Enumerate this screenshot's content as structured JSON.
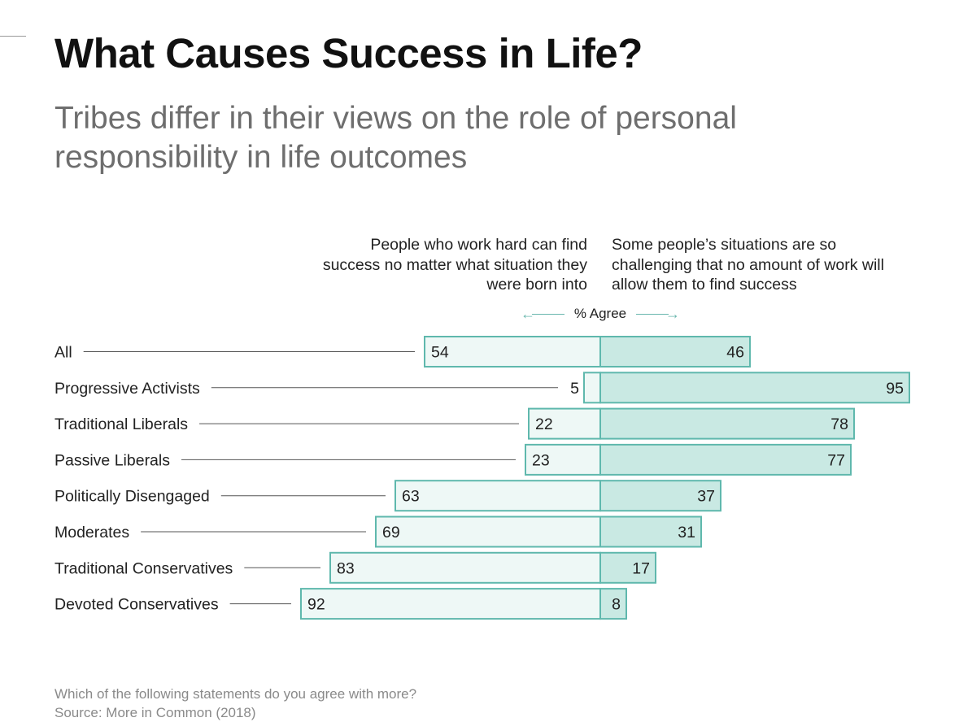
{
  "title": "What Causes Success in Life?",
  "subtitle": "Tribes differ in their views on the role of personal responsibility in life outcomes",
  "legend": {
    "left_header": "People who work hard can find success no matter what situation they were born into",
    "right_header": "Some people’s situations are so challenging that no amount of work will allow them to find success",
    "axis_label": "% Agree"
  },
  "footnote": "Which of the following statements do you agree with more?",
  "source": "Source: More in Common (2018)",
  "colors": {
    "left_fill": "#eef8f6",
    "right_fill": "#c9e9e3",
    "border": "#5fb8ad",
    "leader": "#555555"
  },
  "chart_data": {
    "type": "bar",
    "orientation": "horizontal-diverging",
    "categories": [
      "All",
      "Progressive Activists",
      "Traditional Liberals",
      "Passive Liberals",
      "Politically Disengaged",
      "Moderates",
      "Traditional Conservatives",
      "Devoted Conservatives"
    ],
    "series": [
      {
        "name": "People who work hard can find success no matter what situation they were born into",
        "values": [
          54,
          5,
          22,
          23,
          63,
          69,
          83,
          92
        ]
      },
      {
        "name": "Some people’s situations are so challenging that no amount of work will allow them to find success",
        "values": [
          46,
          95,
          78,
          77,
          37,
          31,
          17,
          8
        ]
      }
    ],
    "xlabel": "% Agree",
    "xlim": [
      0,
      100
    ],
    "grid": false
  }
}
